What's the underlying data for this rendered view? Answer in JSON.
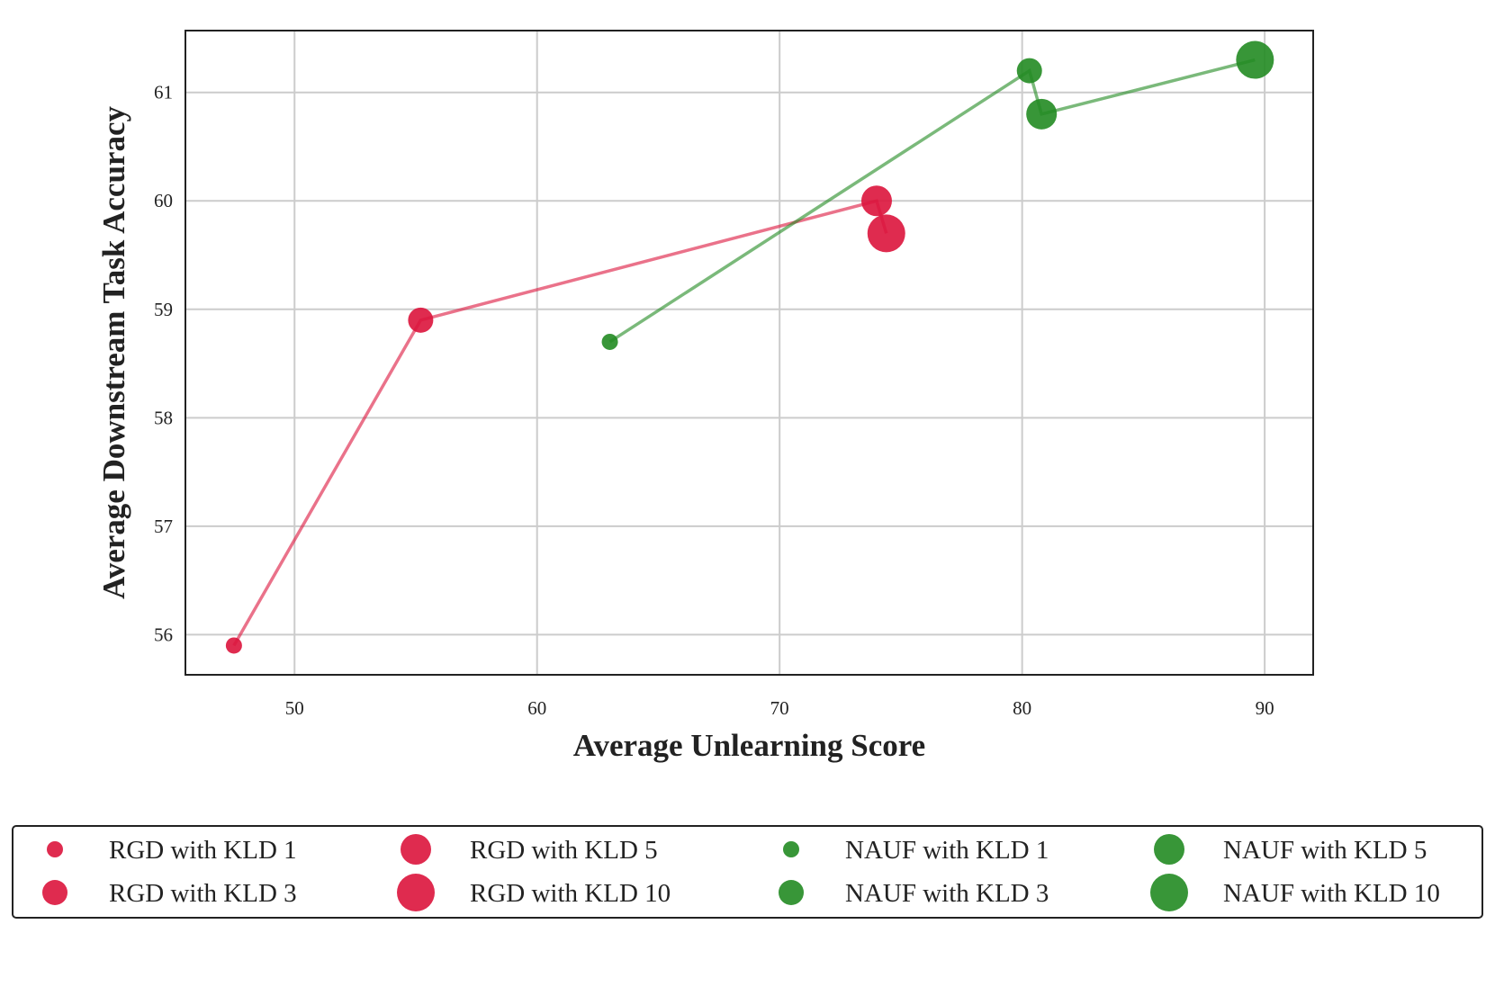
{
  "chart_data": {
    "type": "scatter",
    "xlabel": "Average Unlearning Score",
    "ylabel": "Average Downstream Task Accuracy",
    "xlim": [
      45.5,
      92
    ],
    "ylim": [
      55.63,
      61.57
    ],
    "xticks": [
      "50",
      "60",
      "70",
      "80",
      "90"
    ],
    "yticks": [
      "56",
      "57",
      "58",
      "59",
      "60",
      "61"
    ],
    "grid": true,
    "legend_position": "bottom",
    "series": [
      {
        "group": "RGD",
        "color": "#dc143c",
        "points": [
          {
            "name": "RGD with KLD 1",
            "x": 47.5,
            "y": 55.9,
            "kld": 1
          },
          {
            "name": "RGD with KLD 3",
            "x": 55.2,
            "y": 58.9,
            "kld": 3
          },
          {
            "name": "RGD with KLD 5",
            "x": 74.0,
            "y": 60.0,
            "kld": 5
          },
          {
            "name": "RGD with KLD 10",
            "x": 74.4,
            "y": 59.7,
            "kld": 10
          }
        ]
      },
      {
        "group": "NAUF",
        "color": "#228b22",
        "points": [
          {
            "name": "NAUF with KLD 1",
            "x": 63.0,
            "y": 58.7,
            "kld": 1
          },
          {
            "name": "NAUF with KLD 3",
            "x": 80.3,
            "y": 61.2,
            "kld": 3
          },
          {
            "name": "NAUF with KLD 5",
            "x": 80.8,
            "y": 60.8,
            "kld": 5
          },
          {
            "name": "NAUF with KLD 10",
            "x": 89.6,
            "y": 61.3,
            "kld": 10
          }
        ]
      }
    ],
    "legend": [
      [
        "RGD with KLD 1",
        "RGD with KLD 3"
      ],
      [
        "RGD with KLD 5",
        "RGD with KLD 10"
      ],
      [
        "NAUF with KLD 1",
        "NAUF with KLD 3"
      ],
      [
        "NAUF with KLD 5",
        "NAUF with KLD 10"
      ]
    ]
  }
}
